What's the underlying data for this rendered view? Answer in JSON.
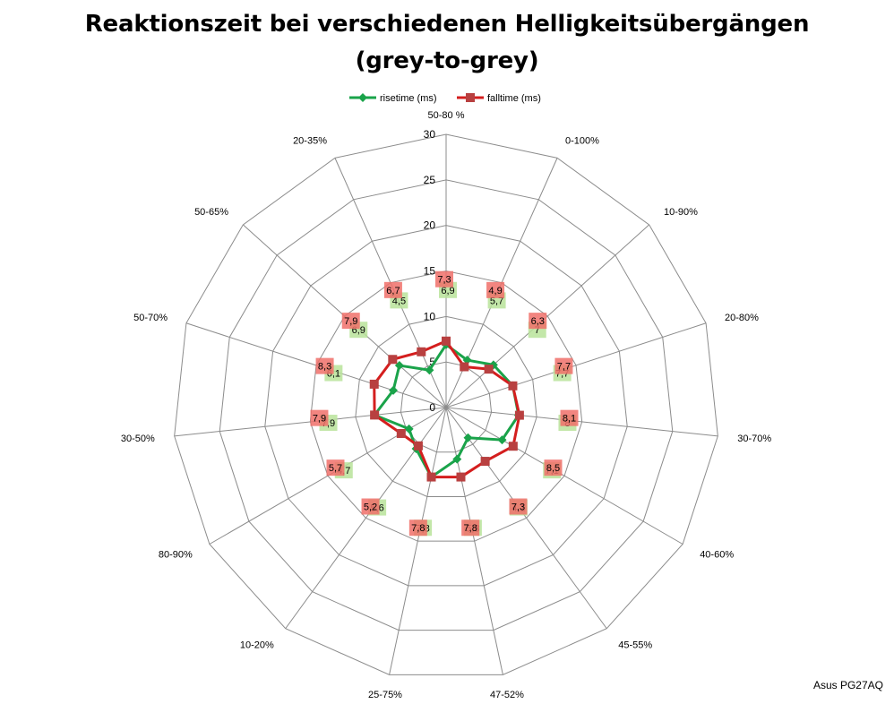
{
  "title_line1": "Reaktionszeit bei verschiedenen Helligkeitsübergängen",
  "title_line2": "(grey-to-grey)",
  "credit": "Asus PG27AQ",
  "chart_data": {
    "type": "radar",
    "categories": [
      "50-80 %",
      "0-100%",
      "10-90%",
      "20-80%",
      "30-70%",
      "40-60%",
      "45-55%",
      "47-52%",
      "25-75%",
      "10-20%",
      "80-90%",
      "30-50%",
      "50-70%",
      "50-65%",
      "20-35%"
    ],
    "r_ticks": [
      0,
      5,
      10,
      15,
      20,
      25,
      30
    ],
    "rlim": [
      0,
      30
    ],
    "legend_position": "top",
    "series": [
      {
        "name": "risetime (ms)",
        "color": "#1aa34a",
        "label_bg": "#b9e39a",
        "marker": "diamond",
        "values": [
          6.9,
          5.7,
          7,
          7.7,
          8,
          7.1,
          4.1,
          5.8,
          7.8,
          5.6,
          4.7,
          7.9,
          6.1,
          6.9,
          4.5
        ],
        "labels": [
          "6,9",
          "5,7",
          "7",
          "7,7",
          "8",
          "7,1",
          "4,1",
          "5,8",
          "7,8",
          "5,6",
          "4,7",
          "7,9",
          "6,1",
          "6,9",
          "4,5"
        ]
      },
      {
        "name": "falltime (ms)",
        "color": "#d41e1e",
        "label_bg": "#f0706a",
        "marker": "square",
        "values": [
          7.3,
          4.9,
          6.3,
          7.7,
          8.1,
          8.5,
          7.3,
          7.8,
          7.8,
          5.2,
          5.7,
          7.9,
          8.3,
          7.9,
          6.7
        ],
        "labels": [
          "7,3",
          "4,9",
          "6,3",
          "7,7",
          "8,1",
          "8,5",
          "7,3",
          "7,8",
          "7,8",
          "5,2",
          "5,7",
          "7,9",
          "8,3",
          "7,9",
          "6,7"
        ]
      }
    ]
  }
}
